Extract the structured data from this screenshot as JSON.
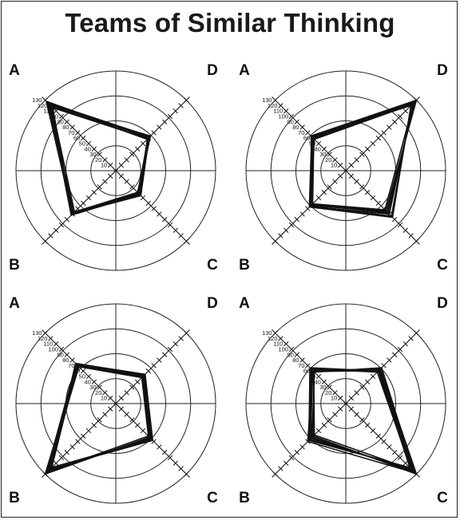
{
  "title": "Teams of Similar Thinking",
  "chart_data": [
    {
      "type": "radar",
      "quadrants": [
        "A",
        "B",
        "C",
        "D"
      ],
      "ticks": [
        10,
        20,
        30,
        40,
        50,
        60,
        70,
        80,
        90,
        100,
        110,
        120,
        130
      ],
      "rlim": [
        0,
        130
      ],
      "series": [
        {
          "values": [
            124,
            78,
            42,
            62
          ]
        },
        {
          "values": [
            128,
            80,
            45,
            60
          ]
        },
        {
          "values": [
            118,
            76,
            40,
            64
          ]
        },
        {
          "values": [
            122,
            82,
            44,
            58
          ]
        },
        {
          "values": [
            120,
            79,
            46,
            61
          ]
        },
        {
          "values": [
            126,
            77,
            43,
            63
          ]
        },
        {
          "values": [
            116,
            81,
            41,
            59
          ]
        }
      ]
    },
    {
      "type": "radar",
      "quadrants": [
        "A",
        "B",
        "C",
        "D"
      ],
      "ticks": [
        10,
        20,
        30,
        40,
        50,
        60,
        70,
        80,
        90,
        100,
        110,
        120,
        130
      ],
      "rlim": [
        0,
        130
      ],
      "series": [
        {
          "values": [
            62,
            64,
            76,
            128
          ]
        },
        {
          "values": [
            60,
            66,
            80,
            124
          ]
        },
        {
          "values": [
            64,
            62,
            74,
            130
          ]
        },
        {
          "values": [
            58,
            65,
            84,
            122
          ]
        },
        {
          "values": [
            61,
            63,
            78,
            126
          ]
        },
        {
          "values": [
            63,
            67,
            86,
            120
          ]
        },
        {
          "values": [
            59,
            61,
            72,
            125
          ]
        }
      ]
    },
    {
      "type": "radar",
      "quadrants": [
        "A",
        "B",
        "C",
        "D"
      ],
      "ticks": [
        10,
        20,
        30,
        40,
        50,
        60,
        70,
        80,
        90,
        100,
        110,
        120,
        130
      ],
      "rlim": [
        0,
        130
      ],
      "series": [
        {
          "values": [
            72,
            124,
            64,
            52
          ]
        },
        {
          "values": [
            70,
            130,
            62,
            50
          ]
        },
        {
          "values": [
            74,
            120,
            68,
            54
          ]
        },
        {
          "values": [
            68,
            126,
            60,
            48
          ]
        },
        {
          "values": [
            71,
            118,
            66,
            53
          ]
        },
        {
          "values": [
            73,
            128,
            63,
            51
          ]
        },
        {
          "values": [
            69,
            122,
            65,
            49
          ]
        }
      ]
    },
    {
      "type": "radar",
      "quadrants": [
        "A",
        "B",
        "C",
        "D"
      ],
      "ticks": [
        10,
        20,
        30,
        40,
        50,
        60,
        70,
        80,
        90,
        100,
        110,
        120,
        130
      ],
      "rlim": [
        0,
        130
      ],
      "series": [
        {
          "values": [
            62,
            64,
            124,
            62
          ]
        },
        {
          "values": [
            60,
            60,
            130,
            64
          ]
        },
        {
          "values": [
            66,
            68,
            118,
            60
          ]
        },
        {
          "values": [
            58,
            62,
            126,
            66
          ]
        },
        {
          "values": [
            64,
            66,
            120,
            58
          ]
        },
        {
          "values": [
            61,
            70,
            128,
            63
          ]
        },
        {
          "values": [
            59,
            58,
            122,
            61
          ]
        }
      ]
    }
  ]
}
